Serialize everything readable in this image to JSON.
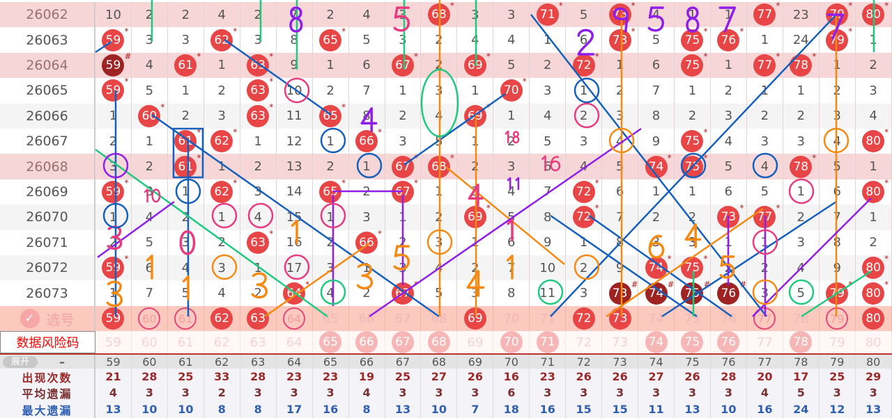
{
  "columns": [
    59,
    60,
    61,
    62,
    63,
    64,
    65,
    66,
    67,
    68,
    69,
    70,
    71,
    72,
    73,
    74,
    75,
    76,
    77,
    78,
    79,
    80
  ],
  "rows": [
    {
      "issue": "26062",
      "hl": true,
      "cells": [
        "10",
        "2",
        "2",
        "4",
        "2",
        "7",
        "2",
        "4",
        "3",
        "68*",
        "3",
        "3",
        "71*",
        "5",
        "73*",
        "4",
        "1",
        "1",
        "77*",
        "23",
        "79*",
        "80*"
      ]
    },
    {
      "issue": "26063",
      "hl": false,
      "cells": [
        "59*",
        "3",
        "3",
        "62*",
        "3",
        "8",
        "65*",
        "5",
        "3",
        "2",
        "4",
        "4",
        "1",
        "6",
        "73*",
        "5",
        "75*",
        "76*",
        "1",
        "24",
        "79*",
        "1"
      ]
    },
    {
      "issue": "26064",
      "hl": true,
      "cells": [
        "59#",
        "4",
        "61*",
        "1",
        "63*",
        "9",
        "1",
        "6",
        "67*",
        "2",
        "69*",
        "5",
        "2",
        "72*",
        "1",
        "6",
        "75*",
        "1",
        "77*",
        "78*",
        "1",
        "2"
      ]
    },
    {
      "issue": "26065",
      "hl": false,
      "cells": [
        "59*",
        "5",
        "1",
        "2",
        "63*",
        "10",
        "2",
        "7",
        "1",
        "3",
        "1",
        "70*",
        "3",
        "1",
        "2",
        "7",
        "1",
        "2",
        "1",
        "1",
        "2",
        "3"
      ]
    },
    {
      "issue": "26066",
      "hl": false,
      "cells": [
        "1",
        "60*",
        "2",
        "3",
        "63*",
        "11",
        "65*",
        "8",
        "2",
        "4",
        "69*",
        "1",
        "4",
        "2",
        "3",
        "8",
        "2",
        "3",
        "2",
        "2",
        "3",
        "4"
      ]
    },
    {
      "issue": "26067",
      "hl": false,
      "cells": [
        "2",
        "1",
        "61*",
        "62*",
        "1",
        "12",
        "1",
        "66*",
        "3",
        "5",
        "1",
        "2",
        "5",
        "3",
        "4",
        "9",
        "75*",
        "4",
        "3",
        "3",
        "4",
        "80*"
      ]
    },
    {
      "issue": "26068",
      "hl": true,
      "cells": [
        "3",
        "2",
        "61*",
        "1",
        "2",
        "13",
        "2",
        "1",
        "67*",
        "68*",
        "2",
        "3",
        "6",
        "4",
        "5",
        "74*",
        "75*",
        "5",
        "4",
        "78*",
        "5",
        "1"
      ]
    },
    {
      "issue": "26069",
      "hl": false,
      "cells": [
        "59*",
        "3",
        "1",
        "62*",
        "3",
        "14",
        "65*",
        "2",
        "67*",
        "1",
        "3",
        "4",
        "7",
        "72*",
        "6",
        "1",
        "1",
        "6",
        "5",
        "1",
        "6",
        "80*"
      ]
    },
    {
      "issue": "26070",
      "hl": false,
      "cells": [
        "1",
        "4",
        "2",
        "1",
        "4",
        "15",
        "1",
        "3",
        "1",
        "2",
        "69*",
        "5",
        "8",
        "72*",
        "7",
        "2",
        "2",
        "73*",
        "77*",
        "2",
        "7",
        "1"
      ]
    },
    {
      "issue": "26071",
      "hl": false,
      "cells": [
        "2",
        "5",
        "3",
        "2",
        "63*",
        "16",
        "2",
        "66*",
        "2",
        "3",
        "1",
        "6",
        "9",
        "1",
        "8",
        "3",
        "3",
        "1",
        "1",
        "3",
        "8",
        "2"
      ]
    },
    {
      "issue": "26072",
      "hl": false,
      "cells": [
        "59*",
        "6",
        "4",
        "3",
        "1",
        "17",
        "3",
        "1",
        "3",
        "4",
        "2",
        "7",
        "10",
        "2",
        "9",
        "74*",
        "75*",
        "2",
        "2",
        "4",
        "9",
        "80*"
      ]
    },
    {
      "issue": "26073",
      "hl": false,
      "cells": [
        "1",
        "7",
        "5",
        "4",
        "2",
        "64*",
        "4",
        "2",
        "67*",
        "5",
        "3",
        "8",
        "11",
        "3",
        "73#",
        "74#",
        "75#",
        "76#",
        "3",
        "5",
        "79*",
        "80*"
      ]
    }
  ],
  "pick_row": {
    "label": "选号",
    "states": [
      "ball",
      "ring",
      "ring",
      "ball",
      "ball",
      "ring",
      "fade",
      "fade",
      "fade",
      "fade",
      "ball",
      "fade",
      "fade",
      "ball",
      "ball",
      "fade",
      "fade",
      "fade",
      "ring",
      "fade",
      "ring",
      "ball"
    ]
  },
  "risk_row": {
    "label": "数据风险码",
    "hits": [
      65,
      66,
      67,
      68,
      70,
      71,
      74,
      75,
      76,
      78
    ]
  },
  "stats": {
    "header_label": "–",
    "appear": {
      "label": "出现次数",
      "values": [
        "21",
        "28",
        "25",
        "33",
        "28",
        "23",
        "23",
        "19",
        "25",
        "27",
        "26",
        "16",
        "23",
        "26",
        "26",
        "27",
        "26",
        "28",
        "20",
        "17",
        "25",
        "29"
      ]
    },
    "avg_miss": {
      "label": "平均遗漏",
      "values": [
        "4",
        "3",
        "3",
        "2",
        "3",
        "3",
        "3",
        "4",
        "3",
        "3",
        "3",
        "6",
        "3",
        "3",
        "3",
        "3",
        "3",
        "3",
        "4",
        "5",
        "3",
        "3"
      ]
    },
    "max_miss": {
      "label": "最大遗漏",
      "values": [
        "13",
        "10",
        "10",
        "8",
        "8",
        "17",
        "16",
        "8",
        "13",
        "10",
        "7",
        "18",
        "16",
        "15",
        "15",
        "11",
        "13",
        "10",
        "16",
        "24",
        "12",
        "13"
      ]
    }
  },
  "expand_label": "展开",
  "annotations": {
    "labels": [
      "8",
      "5",
      "2",
      "9",
      "5",
      "8",
      "7",
      "7",
      "4",
      "3",
      "0",
      "1",
      "3",
      "1",
      "1",
      "3",
      "3",
      "5",
      "4",
      "1",
      "6",
      "4",
      "5",
      "1",
      "4",
      "18",
      "16",
      "11",
      "10"
    ]
  },
  "colors": {
    "ball": "#e84646",
    "ball_dark": "#9e2323",
    "row_highlight": "#f6d6d6",
    "pick_row": "#fbc9bd",
    "blue": "#1560bd",
    "orange": "#f58a12",
    "green": "#1fc97f",
    "purple": "#8f1fe8",
    "pink": "#e83a7f"
  }
}
